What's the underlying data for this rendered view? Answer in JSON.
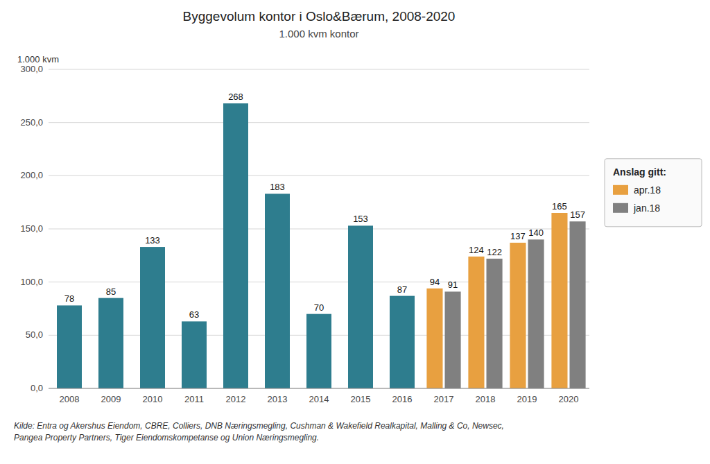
{
  "chart_data": {
    "type": "bar",
    "title": "Byggevolum kontor i Oslo&Bærum, 2008-2020",
    "subtitle": "1.000 kvm kontor",
    "y_label": "1.000 kvm",
    "categories": [
      "2008",
      "2009",
      "2010",
      "2011",
      "2012",
      "2013",
      "2014",
      "2015",
      "2016",
      "2017",
      "2018",
      "2019",
      "2020"
    ],
    "series": [
      {
        "color": "#2e7d8e",
        "values": [
          78,
          85,
          133,
          63,
          268,
          183,
          70,
          153,
          87,
          null,
          null,
          null,
          null
        ]
      },
      {
        "name": "apr.18",
        "color": "#e8a040",
        "values": [
          null,
          null,
          null,
          null,
          null,
          null,
          null,
          null,
          null,
          94,
          124,
          137,
          165
        ]
      },
      {
        "name": "jan.18",
        "color": "#808080",
        "values": [
          null,
          null,
          null,
          null,
          null,
          null,
          null,
          null,
          null,
          91,
          122,
          140,
          157
        ]
      }
    ],
    "ylim": [
      0,
      300
    ],
    "yticks": [
      {
        "value": 0,
        "label": "0,0"
      },
      {
        "value": 50,
        "label": "50,0"
      },
      {
        "value": 100,
        "label": "100,0"
      },
      {
        "value": 150,
        "label": "150,0"
      },
      {
        "value": 200,
        "label": "200,0"
      },
      {
        "value": 250,
        "label": "250,0"
      },
      {
        "value": 300,
        "label": "300,0"
      }
    ],
    "grid": true,
    "data_labels": true,
    "legend": "right",
    "legend_title": "Anslag gitt:",
    "footnote": [
      "Kilde: Entra og Akershus Eiendom, CBRE, Colliers, DNB Næringsmegling, Cushman & Wakefield Realkapital, Malling & Co, Newsec,",
      "Pangea Property Partners, Tiger Eiendomskompetanse og Union Næringsmegling."
    ]
  }
}
